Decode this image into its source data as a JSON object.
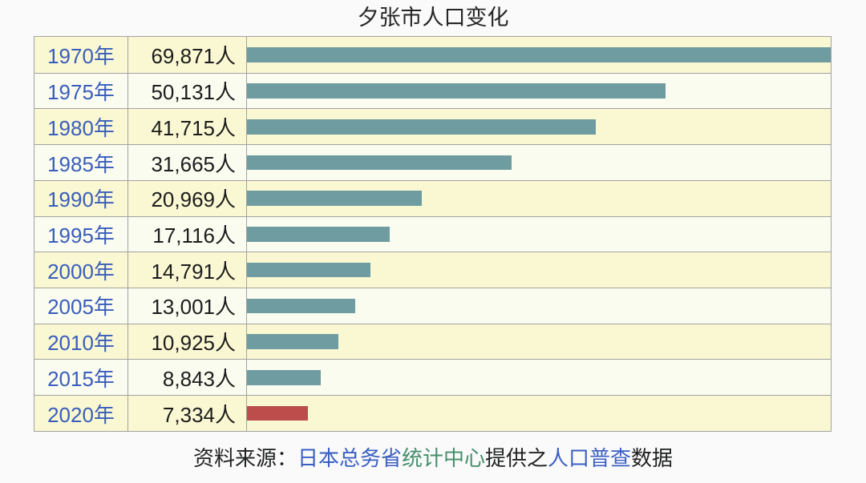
{
  "title": "夕张市人口变化",
  "max_value": 69871,
  "colors": {
    "bar_teal": "#6e9ca0",
    "bar_red": "#bc4d4a",
    "row_yellow": "#faf8d2",
    "row_white": "#fbfcf0",
    "border": "#a2a2a2",
    "year_link": "#3a5dbb",
    "value_text": "#1c1c1c",
    "footer_link_blue": "#3a5fc2",
    "footer_link_green": "#458f6b"
  },
  "rows": [
    {
      "year": "1970年",
      "value_label": "69,871人",
      "value": 69871,
      "bar_color": "#6e9ca0"
    },
    {
      "year": "1975年",
      "value_label": "50,131人",
      "value": 50131,
      "bar_color": "#6e9ca0"
    },
    {
      "year": "1980年",
      "value_label": "41,715人",
      "value": 41715,
      "bar_color": "#6e9ca0"
    },
    {
      "year": "1985年",
      "value_label": "31,665人",
      "value": 31665,
      "bar_color": "#6e9ca0"
    },
    {
      "year": "1990年",
      "value_label": "20,969人",
      "value": 20969,
      "bar_color": "#6e9ca0"
    },
    {
      "year": "1995年",
      "value_label": "17,116人",
      "value": 17116,
      "bar_color": "#6e9ca0"
    },
    {
      "year": "2000年",
      "value_label": "14,791人",
      "value": 14791,
      "bar_color": "#6e9ca0"
    },
    {
      "year": "2005年",
      "value_label": "13,001人",
      "value": 13001,
      "bar_color": "#6e9ca0"
    },
    {
      "year": "2010年",
      "value_label": "10,925人",
      "value": 10925,
      "bar_color": "#6e9ca0"
    },
    {
      "year": "2015年",
      "value_label": "8,843人",
      "value": 8843,
      "bar_color": "#6e9ca0"
    },
    {
      "year": "2020年",
      "value_label": "7,334人",
      "value": 7334,
      "bar_color": "#bc4d4a"
    }
  ],
  "footer": {
    "prefix": "资料来源：",
    "link_agency": "日本总务省",
    "link_center": "统计中心",
    "middle": "提供之",
    "link_census": "人口普查",
    "suffix": "数据"
  },
  "chart_data": {
    "type": "bar",
    "orientation": "horizontal",
    "title": "夕张市人口变化",
    "categories": [
      "1970年",
      "1975年",
      "1980年",
      "1985年",
      "1990年",
      "1995年",
      "2000年",
      "2005年",
      "2010年",
      "2015年",
      "2020年"
    ],
    "values": [
      69871,
      50131,
      41715,
      31665,
      20969,
      17116,
      14791,
      13001,
      10925,
      8843,
      7334
    ],
    "value_labels": [
      "69,871人",
      "50,131人",
      "41,715人",
      "31,665人",
      "20,969人",
      "17,116人",
      "14,791人",
      "13,001人",
      "10,925人",
      "8,843人",
      "7,334人"
    ],
    "xlabel": "",
    "ylabel": "",
    "xlim": [
      0,
      69871
    ],
    "grid": false,
    "legend": "none",
    "bar_color_default": "#6e9ca0",
    "bar_color_last": "#bc4d4a",
    "source": "资料来源：日本总务省统计中心提供之人口普查数据"
  }
}
